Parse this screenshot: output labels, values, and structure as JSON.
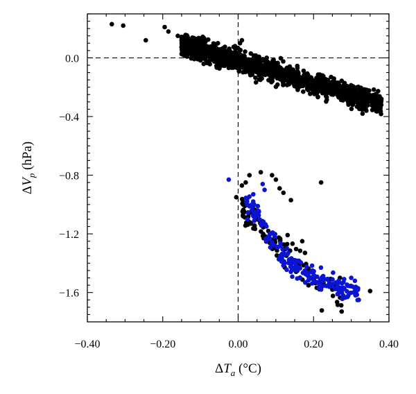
{
  "chart_data": {
    "type": "scatter",
    "title": "",
    "xlabel_parts": [
      "Δ",
      "T",
      "a",
      " (°C)"
    ],
    "ylabel_parts": [
      "Δ",
      "V",
      "p",
      " (hPa)"
    ],
    "xlim": [
      -0.4,
      0.4
    ],
    "ylim": [
      -1.8,
      0.3
    ],
    "x_ticks": [
      -0.4,
      -0.2,
      0.0,
      0.2,
      0.4
    ],
    "x_tick_labels": [
      "−0.40",
      "−0.20",
      "0.00",
      "0.20",
      "0.40"
    ],
    "y_ticks": [
      0.0,
      -0.4,
      -0.8,
      -1.2,
      -1.6
    ],
    "y_tick_labels": [
      "0.0",
      "−0.4",
      "−0.8",
      "−1.2",
      "−1.6"
    ],
    "reference_lines": {
      "x": 0.0,
      "y": 0.0,
      "style": "dashed"
    },
    "grid": false,
    "legend": "none",
    "series": [
      {
        "color": "#000000",
        "cluster_generators": [
          {
            "kind": "band",
            "x_range": [
              -0.15,
              0.38
            ],
            "y_at_x0": -0.02,
            "slope": -0.78,
            "spread": 0.07,
            "count": 1500,
            "seed": 11
          },
          {
            "kind": "band",
            "x_range": [
              0.01,
              0.12
            ],
            "y_at_x0": -1.0,
            "slope": -2.6,
            "spread": 0.1,
            "count": 60,
            "seed": 23
          },
          {
            "kind": "band",
            "x_range": [
              0.12,
              0.28
            ],
            "y_at_x0": -1.0,
            "slope": -2.6,
            "spread": 0.12,
            "count": 45,
            "seed": 29
          }
        ],
        "points": [
          [
            -0.335,
            0.23
          ],
          [
            -0.305,
            0.22
          ],
          [
            -0.245,
            0.12
          ],
          [
            -0.195,
            0.21
          ],
          [
            -0.185,
            0.18
          ],
          [
            -0.16,
            0.15
          ],
          [
            -0.15,
            0.12
          ],
          [
            -0.145,
            0.02
          ],
          [
            0.38,
            -0.28
          ],
          [
            0.36,
            -0.3
          ],
          [
            0.34,
            -0.36
          ],
          [
            0.33,
            -0.38
          ],
          [
            0.01,
            0.12
          ],
          [
            0.005,
            0.1
          ],
          [
            -0.005,
            -0.95
          ],
          [
            0.01,
            -0.87
          ],
          [
            0.02,
            -0.85
          ],
          [
            0.03,
            -0.8
          ],
          [
            0.06,
            -0.78
          ],
          [
            0.09,
            -0.8
          ],
          [
            0.1,
            -0.83
          ],
          [
            0.11,
            -0.89
          ],
          [
            0.12,
            -0.92
          ],
          [
            0.14,
            -0.97
          ],
          [
            0.22,
            -0.85
          ],
          [
            0.08,
            -1.18
          ],
          [
            0.13,
            -1.27
          ],
          [
            0.17,
            -1.25
          ],
          [
            0.35,
            -1.59
          ],
          [
            0.27,
            -1.5
          ],
          [
            0.26,
            -1.55
          ],
          [
            0.25,
            -1.58
          ]
        ]
      },
      {
        "color": "#0a14d2",
        "cluster_generators": [
          {
            "kind": "curve",
            "x_range": [
              0.02,
              0.32
            ],
            "curve": [
              [
                0.02,
                -0.95
              ],
              [
                0.05,
                -1.07
              ],
              [
                0.08,
                -1.2
              ],
              [
                0.11,
                -1.33
              ],
              [
                0.15,
                -1.43
              ],
              [
                0.2,
                -1.5
              ],
              [
                0.26,
                -1.56
              ],
              [
                0.32,
                -1.6
              ]
            ],
            "spread": 0.07,
            "count": 200,
            "seed": 37
          }
        ],
        "points": [
          [
            -0.025,
            -0.83
          ],
          [
            0.065,
            -0.86
          ],
          [
            0.07,
            -0.9
          ],
          [
            0.04,
            -0.93
          ],
          [
            0.055,
            -1.05
          ],
          [
            0.3,
            -1.5
          ],
          [
            0.31,
            -1.59
          ],
          [
            0.32,
            -1.65
          ],
          [
            0.29,
            -1.63
          ],
          [
            0.025,
            -1.1
          ]
        ]
      }
    ]
  }
}
